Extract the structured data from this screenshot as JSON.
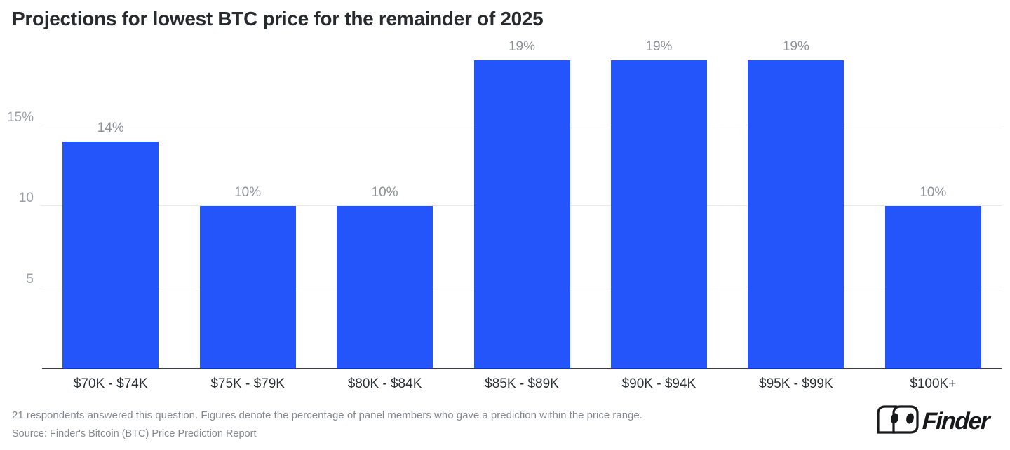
{
  "title": "Projections for lowest BTC price for the remainder of 2025",
  "chart_data": {
    "type": "bar",
    "title": "Projections for lowest BTC price for the remainder of 2025",
    "categories": [
      "$70K - $74K",
      "$75K - $79K",
      "$80K - $84K",
      "$85K - $89K",
      "$90K - $94K",
      "$95K - $99K",
      "$100K+"
    ],
    "values": [
      14,
      10,
      10,
      19,
      19,
      19,
      10
    ],
    "bar_labels": [
      "14%",
      "10%",
      "10%",
      "19%",
      "19%",
      "19%",
      "10%"
    ],
    "xlabel": "",
    "ylabel": "",
    "ylim": [
      0,
      20
    ],
    "yticks": [
      {
        "value": 5,
        "label": "5"
      },
      {
        "value": 10,
        "label": "10"
      },
      {
        "value": 15,
        "label": "15%"
      }
    ],
    "grid": "horizontal",
    "legend": "none",
    "bar_color": "#2355fb",
    "grid_color": "#e9eaec",
    "axis_color": "#3a3c3f",
    "value_label_color": "#8d9196",
    "tick_label_color": "#9ba0a5"
  },
  "footer": {
    "note": "21 respondents answered this question. Figures denote the percentage of panel members who gave a prediction within the price range.",
    "source": "Source: Finder's Bitcoin (BTC) Price Prediction Report"
  },
  "logo": {
    "brand": "Finder",
    "icon": "finder-eyes-logo"
  }
}
